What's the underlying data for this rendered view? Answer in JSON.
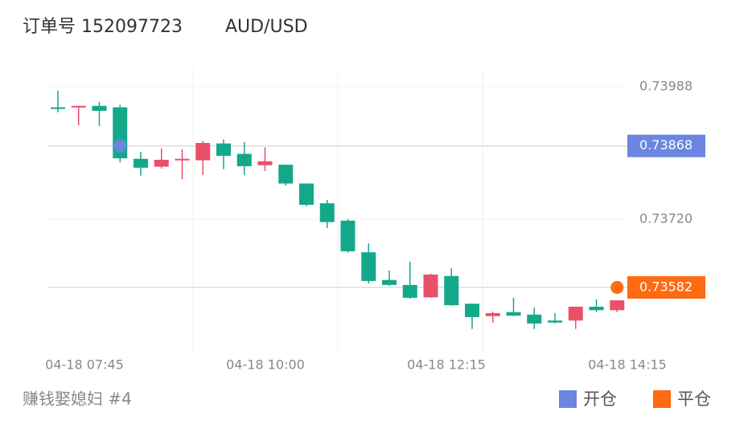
{
  "header": {
    "order": "订单号 152097723",
    "symbol": "AUD/USD"
  },
  "chart_data": {
    "type": "candlestick",
    "up_color": "#e8506a",
    "down_color": "#14a88a",
    "open": [
      0.73946,
      0.73947,
      0.73949,
      0.73946,
      0.73842,
      0.73826,
      0.73839,
      0.73839,
      0.73873,
      0.73852,
      0.73829,
      0.7383,
      0.73792,
      0.73752,
      0.73717,
      0.73653,
      0.73597,
      0.73587,
      0.73562,
      0.73605,
      0.73549,
      0.73524,
      0.73532,
      0.73527,
      0.73515,
      0.73515,
      0.73543,
      0.73536
    ],
    "high": [
      0.7398,
      0.73949,
      0.73957,
      0.73951,
      0.73856,
      0.73863,
      0.73861,
      0.73878,
      0.73881,
      0.73876,
      0.73865,
      0.7383,
      0.73792,
      0.73759,
      0.7372,
      0.73671,
      0.73616,
      0.73634,
      0.7361,
      0.73621,
      0.73549,
      0.73533,
      0.73561,
      0.73541,
      0.7353,
      0.73543,
      0.73558,
      0.73556
    ],
    "low": [
      0.73936,
      0.7391,
      0.73908,
      0.73835,
      0.73808,
      0.73822,
      0.73801,
      0.73809,
      0.73821,
      0.73809,
      0.73817,
      0.73788,
      0.73746,
      0.73702,
      0.73652,
      0.7359,
      0.73585,
      0.73559,
      0.73561,
      0.73545,
      0.73498,
      0.73511,
      0.73524,
      0.73498,
      0.73509,
      0.73498,
      0.73532,
      0.73532
    ],
    "close": [
      0.73943,
      0.73949,
      0.73939,
      0.73843,
      0.73824,
      0.7384,
      0.73842,
      0.73874,
      0.73848,
      0.73827,
      0.73837,
      0.73792,
      0.73749,
      0.73714,
      0.73655,
      0.73595,
      0.73587,
      0.73561,
      0.73608,
      0.73546,
      0.73522,
      0.7353,
      0.73525,
      0.73509,
      0.73511,
      0.73543,
      0.73536,
      0.73556
    ],
    "ylim": [
      0.73452,
      0.74025
    ],
    "yticks": [
      0.73988,
      {
        "value": 0.7372,
        "label": "0.73720"
      }
    ],
    "x_labels": [
      "04-18 07:45",
      "04-18 10:00",
      "04-18 12:15",
      "04-18 14:15"
    ],
    "markers": [
      {
        "name": "开仓",
        "value": 0.73868,
        "color": "#6b86e0",
        "candle": 3
      },
      {
        "name": "平仓",
        "value": 0.73582,
        "color": "#ff6a10",
        "candle": 27
      }
    ]
  },
  "footer": "赚钱娶媳妇 #4"
}
